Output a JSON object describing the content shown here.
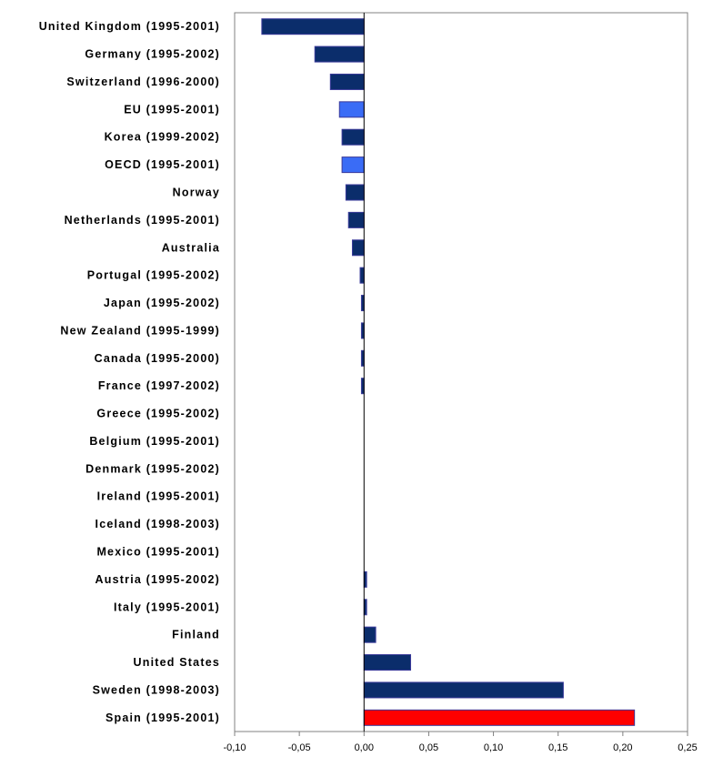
{
  "chart_data": {
    "type": "bar",
    "orientation": "horizontal",
    "title": "",
    "xlabel": "",
    "ylabel": "",
    "xlim": [
      -0.1,
      0.25
    ],
    "x_ticks": [
      -0.1,
      -0.05,
      0.0,
      0.05,
      0.1,
      0.15,
      0.2,
      0.25
    ],
    "x_tick_labels": [
      "-0,10",
      "-0,05",
      "0,00",
      "0,05",
      "0,10",
      "0,15",
      "0,20",
      "0,25"
    ],
    "grid": false,
    "legend": "none",
    "colors": {
      "default": "#0b2d6b",
      "aggregate": "#3a6cf6",
      "highlight": "#ff0000",
      "bar_border": "#3a3a9a"
    },
    "categories": [
      "United Kingdom (1995-2001)",
      "Germany (1995-2002)",
      "Switzerland (1996-2000)",
      "EU (1995-2001)",
      "Korea (1999-2002)",
      "OECD (1995-2001)",
      "Norway",
      "Netherlands (1995-2001)",
      "Australia",
      "Portugal (1995-2002)",
      "Japan (1995-2002)",
      "New Zealand (1995-1999)",
      "Canada (1995-2000)",
      "France (1997-2002)",
      "Greece (1995-2002)",
      "Belgium (1995-2001)",
      "Denmark (1995-2002)",
      "Ireland (1995-2001)",
      "Iceland (1998-2003)",
      "Mexico (1995-2001)",
      "Austria (1995-2002)",
      "Italy (1995-2001)",
      "Finland",
      "United States",
      "Sweden (1998-2003)",
      "Spain (1995-2001)"
    ],
    "values": [
      -0.079,
      -0.038,
      -0.026,
      -0.019,
      -0.017,
      -0.017,
      -0.014,
      -0.012,
      -0.009,
      -0.003,
      -0.002,
      -0.002,
      -0.002,
      -0.002,
      0.0,
      0.0,
      0.0,
      0.0,
      0.0,
      0.0,
      0.002,
      0.002,
      0.009,
      0.036,
      0.154,
      0.209
    ],
    "bar_color_keys": [
      "default",
      "default",
      "default",
      "aggregate",
      "default",
      "aggregate",
      "default",
      "default",
      "default",
      "default",
      "default",
      "default",
      "default",
      "default",
      "default",
      "default",
      "default",
      "default",
      "default",
      "default",
      "default",
      "default",
      "default",
      "default",
      "default",
      "highlight"
    ]
  }
}
